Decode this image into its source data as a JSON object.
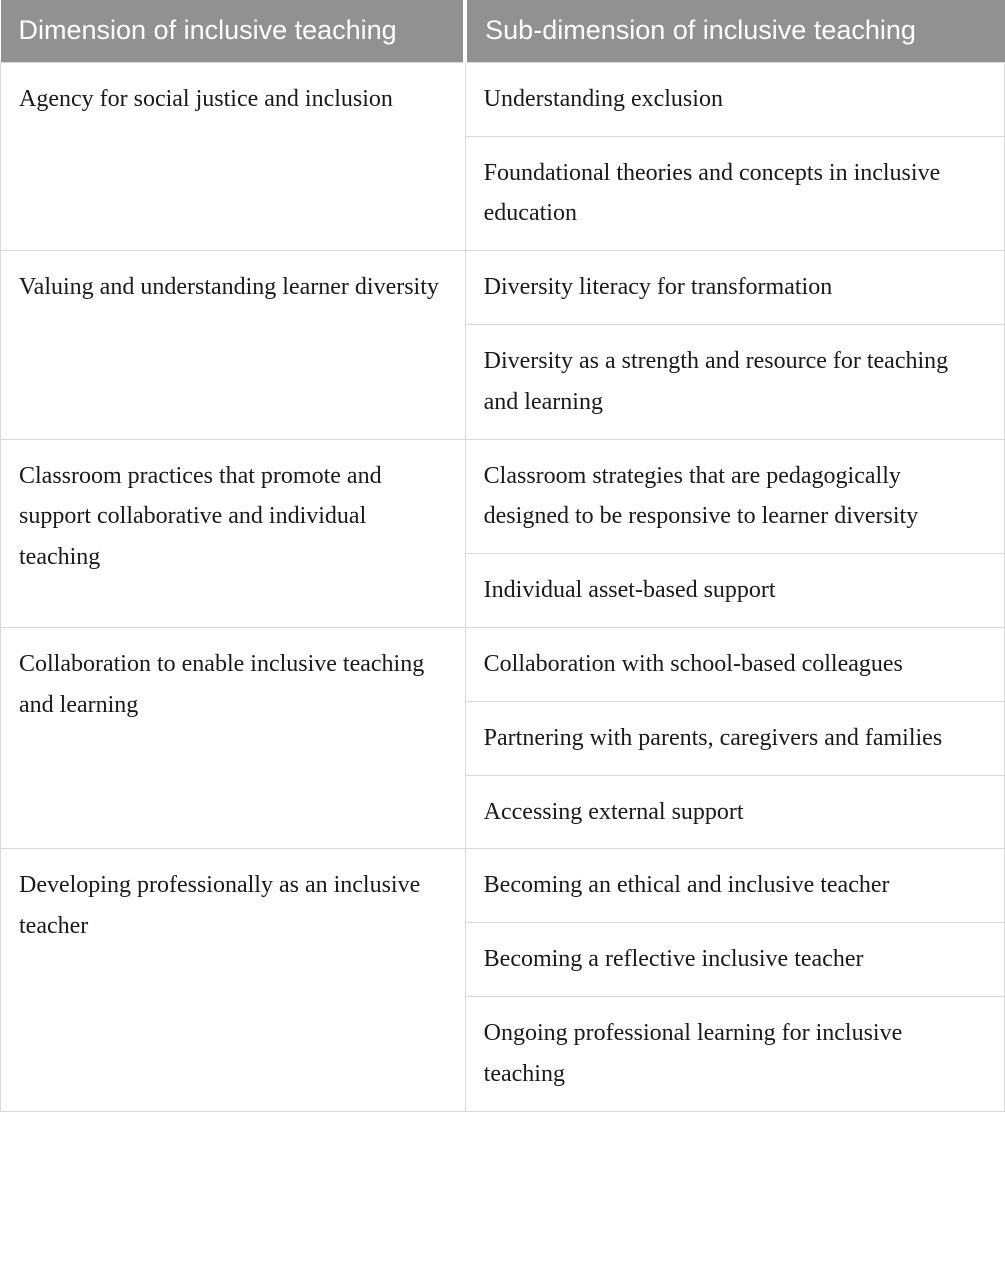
{
  "table": {
    "header_bg": "#919191",
    "header_fg": "#ffffff",
    "border_color": "#d9d9d9",
    "header_font_family": "sans-serif",
    "body_font_family": "serif",
    "header_fontsize_pt": 20,
    "body_fontsize_pt": 18,
    "columns": [
      "Dimension of inclusive teaching",
      "Sub-dimension of inclusive teaching"
    ],
    "rows": [
      {
        "dimension": "Agency for social justice and inclusion",
        "subs": [
          "Understanding exclusion",
          "Foundational theories and concepts in inclusive education"
        ]
      },
      {
        "dimension": "Valuing and understanding learner diversity",
        "subs": [
          "Diversity literacy for transformation",
          "Diversity as a strength and resource for teaching and learning"
        ]
      },
      {
        "dimension": "Classroom practices that promote and support collaborative and individual teaching",
        "subs": [
          "Classroom strategies that are pedagogically designed to be responsive to learner diversity",
          "Individual asset-based support"
        ]
      },
      {
        "dimension": "Collaboration to enable inclusive teaching and learning",
        "subs": [
          "Collaboration with school-based colleagues",
          "Partnering with parents, caregivers and families",
          "Accessing external support"
        ]
      },
      {
        "dimension": "Developing professionally as an inclusive teacher",
        "subs": [
          "Becoming an ethical and inclusive teacher",
          "Becoming a reflective inclusive teacher",
          "Ongoing professional learning for inclusive teaching"
        ]
      }
    ]
  }
}
